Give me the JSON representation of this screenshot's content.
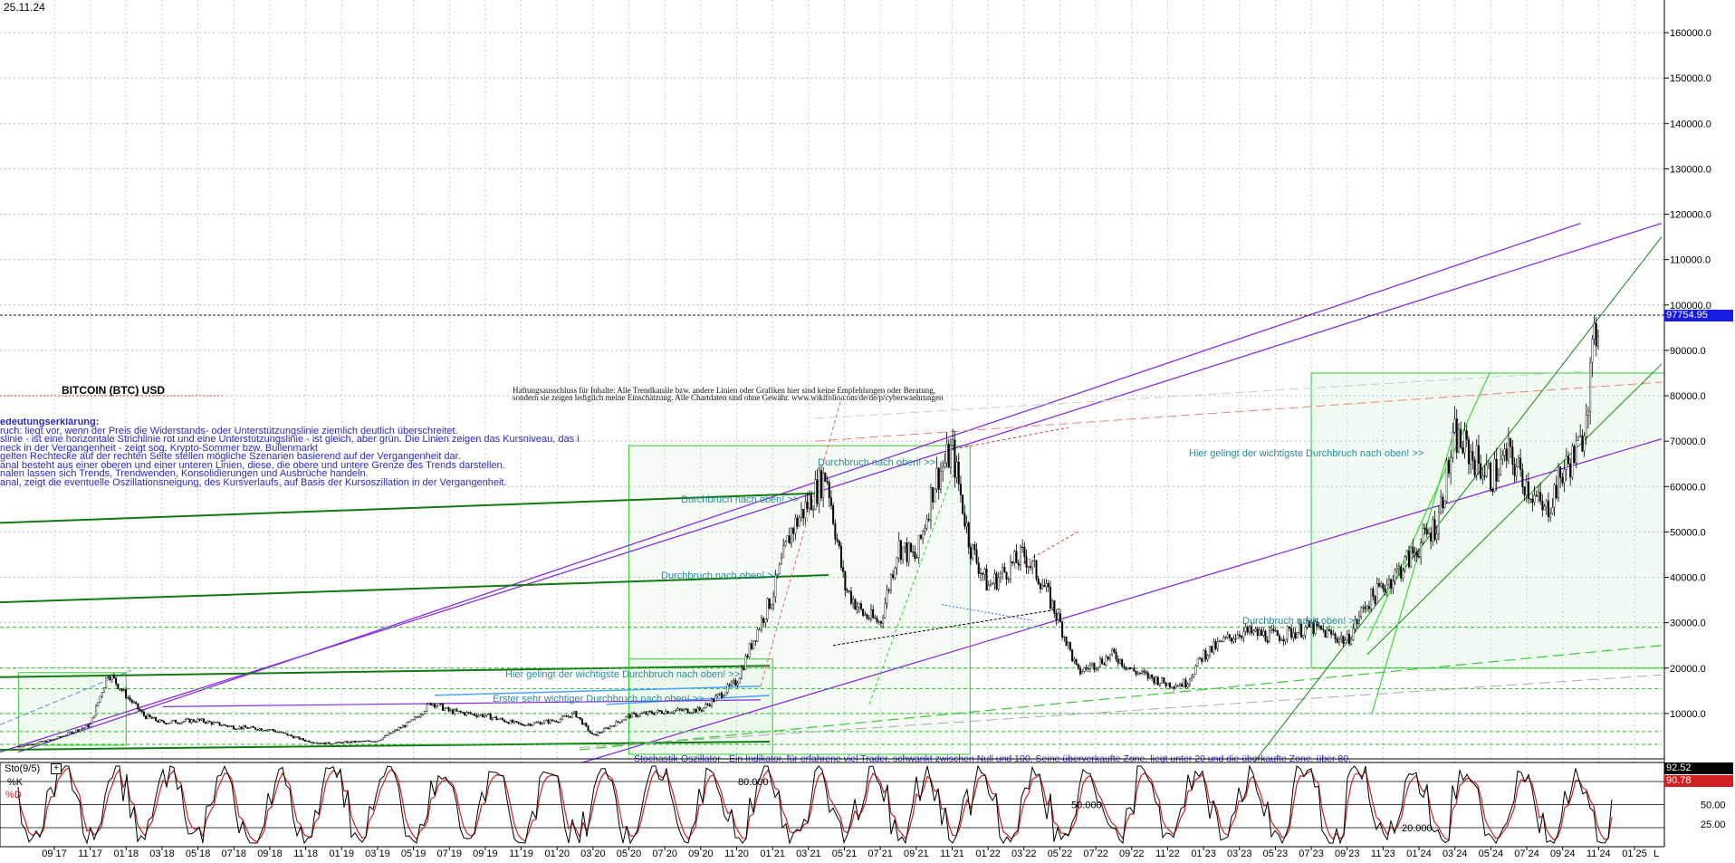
{
  "header": {
    "date": "25.11.24"
  },
  "chart_title": "BITCOIN (BTC) USD",
  "disclaimer": [
    "Haftungsausschluss für Inhalte: Alle Trendkanäle bzw. andere Linien oder Grafiken hier sind keine Empfehlungen oder Beratung,",
    "sondern sie zeigen lediglich meine Einschätzung. Alle Chartdaten sind ohne Gewähr. www.wikifolio.com/de/de/p/cyberwaehrungen"
  ],
  "legend": [
    "edeutungserklärung:",
    "ruch: liegt vor, wenn der Preis die Widerstands- oder Unterstützungslinie ziemlich deutlich überschreitet.",
    "slinie - ist eine horizontale Strichlinie rot und eine Unterstützungslinie - ist gleich, aber grün. Die Linien zeigen das Kursniveau, das in der Vergangenheit schon erreicht, aber nicht überwunden wurde.",
    "neck in der Vergangenheit - zeigt sog. Krypto-Sommer bzw. Bullenmarkt",
    "gelten Rechtecke auf der rechten Seite stellen mögliche Szenarien basierend auf der Vergangenheit dar.",
    "anal besteht aus einer oberen und einer unteren Linien, diese, die obere und untere Grenze des Trends darstellen.",
    "nalen lassen sich Trends, Trendwenden, Konsolidierungen und Ausbrüche handeln.",
    "anal, zeigt die eventuelle Oszillationsneigung, des Kursverlaufs, auf Basis der Kursoszillation in der Vergangenheit."
  ],
  "annotations": [
    "Durchbruch nach oben! >>",
    "Durchbruch nach oben! >>",
    "Durchbruch nach oben! >>",
    "Hier gelingt der wichtigste Durchbruch nach oben! >>",
    "Erster sehr wichtiger Durchbruch nach oben! >>",
    "Durchbruch nach oben! >>",
    "Hier gelingt der wichtigste Durchbruch nach oben! >>"
  ],
  "oscillator": {
    "name": "Sto(9/5)",
    "k_label": "%K",
    "d_label": "%D",
    "caption": "Stochastik-Oszillator - Ein Indikator, für erfahrene viel Trader, schwankt zwischen Null und 100. Seine überverkaufte Zone, liegt unter 20 und die überkaufte Zone, über 80.",
    "inline_labels": [
      "80.000",
      "50.000",
      "20.000"
    ],
    "k_value": "92.52",
    "d_value": "90.78",
    "levels": [
      "50.00",
      "25.00"
    ]
  },
  "colors": {
    "candle_up": "#ffffff",
    "candle_down": "#000000",
    "channel_purple": "#8a2be2",
    "support_green": "#00a000",
    "resistance_red": "#e03030",
    "price_tag_bg": "#1a1ae6",
    "k_line": "#000000",
    "d_line": "#d02020"
  },
  "chart_data": {
    "type": "candlestick",
    "title": "BITCOIN (BTC) USD",
    "yaxis_ticks": [
      "160000.0",
      "150000.0",
      "140000.0",
      "130000.0",
      "120000.0",
      "110000.0",
      "100000.0",
      "90000.0",
      "80000.0",
      "70000.0",
      "60000.0",
      "50000.0",
      "40000.0",
      "30000.0",
      "20000.0",
      "10000.0"
    ],
    "ylim": [
      0,
      166000
    ],
    "last_price": "97754.95",
    "xaxis_ticks": [
      "09 17",
      "11 17",
      "01 18",
      "03 18",
      "05 18",
      "07 18",
      "09 18",
      "11 18",
      "01 19",
      "03 19",
      "05 19",
      "07 19",
      "09 19",
      "11 19",
      "01 20",
      "03 20",
      "05 20",
      "07 20",
      "09 20",
      "11 20",
      "01 21",
      "03 21",
      "05 21",
      "07 21",
      "09 21",
      "11 21",
      "01 22",
      "03 22",
      "05 22",
      "07 22",
      "09 22",
      "11 22",
      "01 23",
      "03 23",
      "05 23",
      "07 23",
      "09 23",
      "11 23",
      "01 24",
      "03 24",
      "05 24",
      "07 24",
      "09 24",
      "11 24",
      "01 25"
    ],
    "axis_end_label": "L",
    "grid": true,
    "price_path": [
      [
        "07 17",
        2700
      ],
      [
        "09 17",
        4300
      ],
      [
        "11 17",
        7500
      ],
      [
        "12 17",
        19000
      ],
      [
        "01 18",
        14000
      ],
      [
        "02 18",
        9500
      ],
      [
        "03 18",
        8000
      ],
      [
        "05 18",
        8500
      ],
      [
        "07 18",
        7000
      ],
      [
        "09 18",
        6500
      ],
      [
        "11 18",
        4000
      ],
      [
        "12 18",
        3400
      ],
      [
        "03 19",
        4000
      ],
      [
        "05 19",
        8500
      ],
      [
        "06 19",
        12500
      ],
      [
        "07 19",
        10500
      ],
      [
        "09 19",
        9500
      ],
      [
        "11 19",
        7500
      ],
      [
        "01 20",
        8500
      ],
      [
        "02 20",
        10000
      ],
      [
        "03 20",
        5000
      ],
      [
        "05 20",
        9500
      ],
      [
        "07 20",
        10500
      ],
      [
        "09 20",
        10800
      ],
      [
        "11 20",
        17000
      ],
      [
        "12 20",
        27000
      ],
      [
        "01 21",
        36000
      ],
      [
        "02 21",
        50000
      ],
      [
        "04 21",
        63000
      ],
      [
        "05 21",
        38000
      ],
      [
        "06 21",
        32000
      ],
      [
        "07 21",
        30000
      ],
      [
        "08 21",
        47000
      ],
      [
        "09 21",
        44000
      ],
      [
        "10 21",
        61000
      ],
      [
        "11 21",
        68000
      ],
      [
        "12 21",
        47000
      ],
      [
        "01 22",
        38000
      ],
      [
        "03 22",
        45000
      ],
      [
        "04 22",
        39000
      ],
      [
        "05 22",
        30000
      ],
      [
        "06 22",
        19000
      ],
      [
        "08 22",
        23000
      ],
      [
        "09 22",
        19500
      ],
      [
        "11 22",
        16500
      ],
      [
        "12 22",
        16600
      ],
      [
        "01 23",
        23000
      ],
      [
        "03 23",
        28000
      ],
      [
        "05 23",
        27000
      ],
      [
        "07 23",
        29000
      ],
      [
        "09 23",
        26000
      ],
      [
        "10 23",
        34000
      ],
      [
        "12 23",
        42000
      ],
      [
        "02 24",
        52000
      ],
      [
        "03 24",
        71000
      ],
      [
        "05 24",
        62000
      ],
      [
        "06 24",
        67000
      ],
      [
        "08 24",
        54000
      ],
      [
        "09 24",
        63000
      ],
      [
        "10 24",
        69000
      ],
      [
        "11 24",
        97754
      ]
    ],
    "stochastic_levels": [
      80,
      50,
      20
    ]
  }
}
